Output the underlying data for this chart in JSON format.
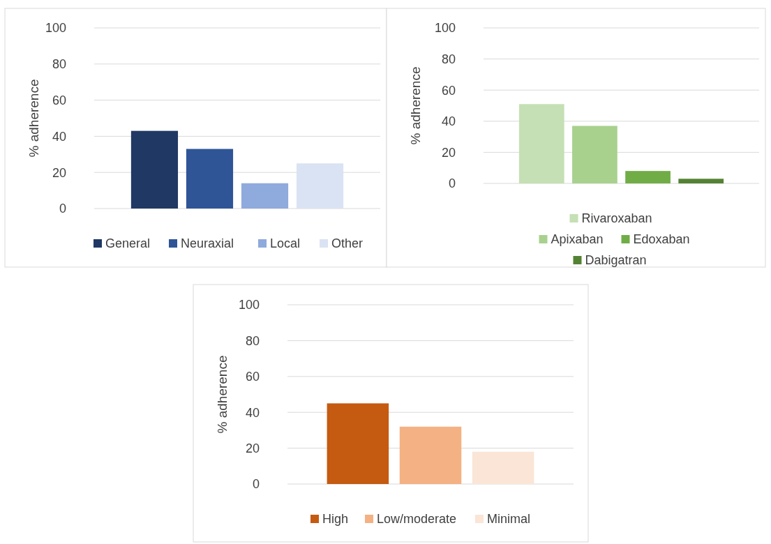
{
  "chart_data": [
    {
      "type": "bar",
      "ylabel": "% adherence",
      "categories": [
        null
      ],
      "ylim": [
        0,
        100
      ],
      "yticks": [
        0,
        20,
        40,
        60,
        80,
        100
      ],
      "grid": "y",
      "legend": "bottom",
      "series": [
        {
          "name": "General",
          "color": "#203864",
          "values": [
            43
          ]
        },
        {
          "name": "Neuraxial",
          "color": "#2f5597",
          "values": [
            33
          ]
        },
        {
          "name": "Local",
          "color": "#8faadc",
          "values": [
            14
          ]
        },
        {
          "name": "Other",
          "color": "#dae3f3",
          "values": [
            25
          ]
        }
      ]
    },
    {
      "type": "bar",
      "ylabel": "% adherence",
      "categories": [
        null
      ],
      "ylim": [
        0,
        100
      ],
      "yticks": [
        0,
        20,
        40,
        60,
        80,
        100
      ],
      "grid": "y",
      "legend": "bottom",
      "series": [
        {
          "name": "Rivaroxaban",
          "color": "#c5e0b4",
          "values": [
            51
          ]
        },
        {
          "name": "Apixaban",
          "color": "#a9d18e",
          "values": [
            37
          ]
        },
        {
          "name": "Edoxaban",
          "color": "#70ad47",
          "values": [
            8
          ]
        },
        {
          "name": "Dabigatran",
          "color": "#548235",
          "values": [
            3
          ]
        }
      ]
    },
    {
      "type": "bar",
      "ylabel": "% adherence",
      "categories": [
        null
      ],
      "ylim": [
        0,
        100
      ],
      "yticks": [
        0,
        20,
        40,
        60,
        80,
        100
      ],
      "grid": "y",
      "legend": "bottom",
      "series": [
        {
          "name": "High",
          "color": "#c55a11",
          "values": [
            45
          ]
        },
        {
          "name": "Low/moderate",
          "color": "#f4b183",
          "values": [
            32
          ]
        },
        {
          "name": "Minimal",
          "color": "#fbe5d6",
          "values": [
            18
          ]
        }
      ]
    }
  ]
}
